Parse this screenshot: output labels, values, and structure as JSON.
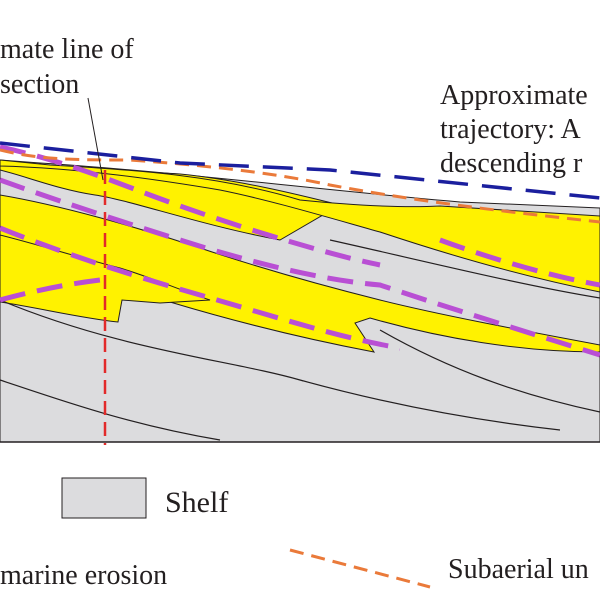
{
  "labels": {
    "section_line_1": "mate line of",
    "section_line_2": "section",
    "trajectory_1": "Approximate",
    "trajectory_2": "trajectory: A",
    "trajectory_3": "descending r"
  },
  "legend": {
    "shelf": "Shelf",
    "marine_erosion": "marine erosion",
    "subaerial": "Subaerial un"
  },
  "colors": {
    "shelf_fill": "#dcdcde",
    "sand_fill": "#fff200",
    "trajectory_blue": "#1b1f9e",
    "subaerial_orange": "#ea7a3a",
    "marine_erosion_purple": "#b94fd4",
    "section_red": "#e22a2a",
    "outline": "#231f20"
  }
}
